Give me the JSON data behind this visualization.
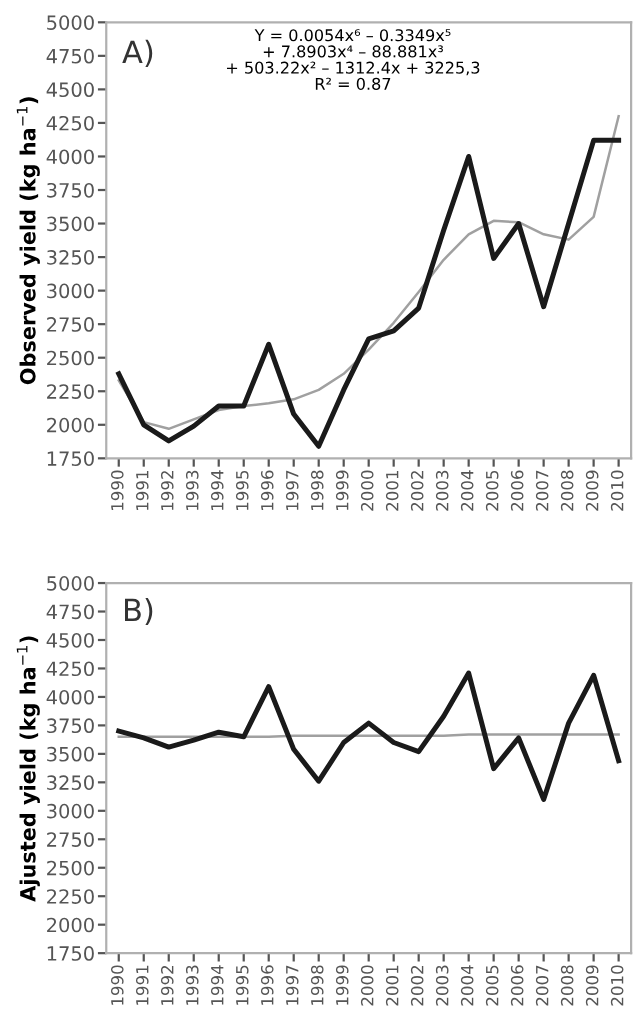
{
  "chart_data": [
    {
      "type": "line",
      "ylabel": "Observed yield (kg ha$^{−1}$)",
      "categories": [
        "1990",
        "1991",
        "1992",
        "1993",
        "1994",
        "1995",
        "1996",
        "1997",
        "1998",
        "1999",
        "2000",
        "2001",
        "2002",
        "2003",
        "2004",
        "2005",
        "2006",
        "2007",
        "2008",
        "2009",
        "2010"
      ],
      "series": [
        {
          "color": "#1a1a1a",
          "values": [
            2380,
            2000,
            1880,
            1990,
            2140,
            2140,
            2600,
            2080,
            1840,
            2260,
            2640,
            2700,
            2870,
            3450,
            4000,
            3240,
            3500,
            2880,
            3500,
            4120,
            4120
          ]
        },
        {
          "color": "#a0a0a0",
          "values": [
            2330,
            2020,
            1970,
            2040,
            2110,
            2140,
            2160,
            2190,
            2260,
            2380,
            2560,
            2760,
            2990,
            3230,
            3420,
            3520,
            3510,
            3420,
            3380,
            3550,
            4300
          ]
        }
      ],
      "annotations": [
        "A)",
        "Y = 0.0054x⁶ – 0.3349x⁵\n+ 7.8903x⁴ – 88.881x³\n+ 503.22x² – 1312.4x + 3225,3\nR² = 0.87"
      ],
      "ylim": [
        1750,
        5000
      ],
      "yticks": [
        1750,
        2000,
        2250,
        2500,
        2750,
        3000,
        3250,
        3500,
        3750,
        4000,
        4250,
        4500,
        4750,
        5000
      ],
      "grid": false,
      "legend": false
    },
    {
      "type": "line",
      "ylabel": "Ajusted yield (kg ha$^{−1}$)",
      "categories": [
        "1990",
        "1991",
        "1992",
        "1993",
        "1994",
        "1995",
        "1996",
        "1997",
        "1998",
        "1999",
        "2000",
        "2001",
        "2002",
        "2003",
        "2004",
        "2005",
        "2006",
        "2007",
        "2008",
        "2009",
        "2010"
      ],
      "series": [
        {
          "color": "#1a1a1a",
          "values": [
            3700,
            3640,
            3560,
            3620,
            3690,
            3650,
            4090,
            3540,
            3260,
            3600,
            3770,
            3600,
            3520,
            3830,
            4210,
            3370,
            3640,
            3100,
            3770,
            4190,
            3440
          ]
        },
        {
          "color": "#a0a0a0",
          "values": [
            3650,
            3650,
            3650,
            3650,
            3650,
            3650,
            3650,
            3660,
            3660,
            3660,
            3660,
            3660,
            3660,
            3660,
            3670,
            3670,
            3670,
            3670,
            3670,
            3670,
            3670
          ]
        }
      ],
      "annotations": [
        "B)"
      ],
      "ylim": [
        1750,
        5000
      ],
      "yticks": [
        1750,
        2000,
        2250,
        2500,
        2750,
        3000,
        3250,
        3500,
        3750,
        4000,
        4250,
        4500,
        4750,
        5000
      ],
      "grid": false,
      "legend": false
    }
  ]
}
